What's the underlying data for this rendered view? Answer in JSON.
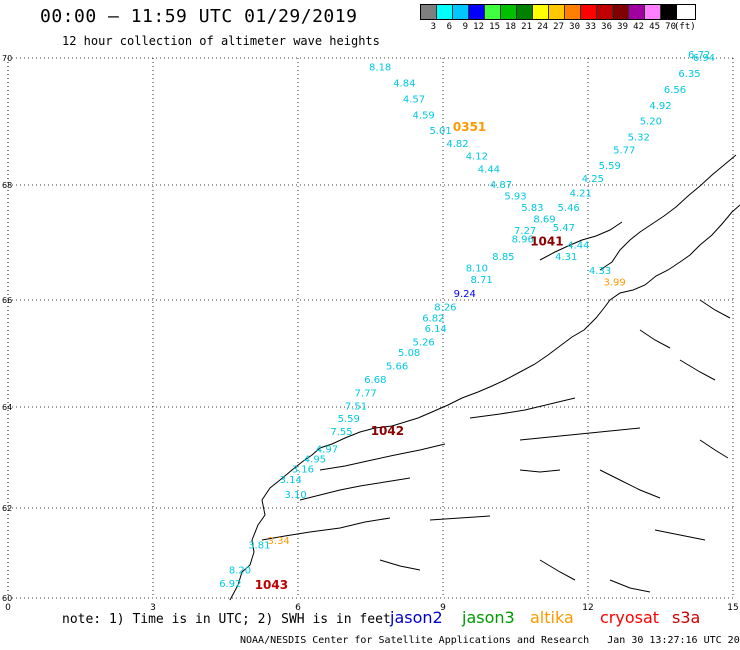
{
  "header": {
    "title": "00:00 – 11:59 UTC 01/29/2019",
    "subtitle": "12 hour collection of altimeter wave heights"
  },
  "scale": {
    "unit": "(ft)",
    "labels": [
      "3",
      "6",
      "9",
      "12",
      "15",
      "18",
      "21",
      "24",
      "27",
      "30",
      "33",
      "36",
      "39",
      "42",
      "45",
      "70"
    ],
    "colors": [
      "#7f7f7f",
      "#00ffff",
      "#00c8ff",
      "#0000ff",
      "#40ff40",
      "#00c000",
      "#008000",
      "#ffff00",
      "#ffc800",
      "#ff8000",
      "#ff0000",
      "#c00000",
      "#800000",
      "#a000a0",
      "#ff80ff",
      "#000000"
    ]
  },
  "axes": {
    "x_ticks": [
      "0",
      "3",
      "6",
      "9",
      "12",
      "15"
    ],
    "y_ticks": [
      "70",
      "68",
      "66",
      "64",
      "62",
      "60"
    ]
  },
  "passes": [
    {
      "id": "0351",
      "color": "#ff9900"
    },
    {
      "id": "1041",
      "color": "#8b0000"
    },
    {
      "id": "1042",
      "color": "#8b0000"
    },
    {
      "id": "1043",
      "color": "#c00000"
    }
  ],
  "chart_data": {
    "type": "scatter",
    "units": "ft",
    "xlim": [
      0,
      15
    ],
    "ylim": [
      60,
      70
    ],
    "points": [
      {
        "lon": 7.7,
        "lat": 69.8,
        "value": "8.18",
        "color": "#00c8e0"
      },
      {
        "lon": 8.2,
        "lat": 69.55,
        "value": "4.84",
        "color": "#00c8e0"
      },
      {
        "lon": 8.4,
        "lat": 69.3,
        "value": "4.57",
        "color": "#00c8e0"
      },
      {
        "lon": 8.6,
        "lat": 69.05,
        "value": "4.59",
        "color": "#00c8e0"
      },
      {
        "lon": 8.95,
        "lat": 68.8,
        "value": "5.01",
        "color": "#00c8e0"
      },
      {
        "lon": 9.3,
        "lat": 68.6,
        "value": "4.82",
        "color": "#00c8e0"
      },
      {
        "lon": 9.7,
        "lat": 68.4,
        "value": "4.12",
        "color": "#00c8e0"
      },
      {
        "lon": 9.95,
        "lat": 68.2,
        "value": "4.44",
        "color": "#00c8e0"
      },
      {
        "lon": 10.2,
        "lat": 67.95,
        "value": "4.87",
        "color": "#00c8e0"
      },
      {
        "lon": 10.5,
        "lat": 67.75,
        "value": "5.93",
        "color": "#00c8e0"
      },
      {
        "lon": 10.85,
        "lat": 67.55,
        "value": "5.83",
        "color": "#00c8e0"
      },
      {
        "lon": 11.1,
        "lat": 67.35,
        "value": "8.69",
        "color": "#00c8e0"
      },
      {
        "lon": 10.7,
        "lat": 67.15,
        "value": "7.27",
        "color": "#00c8e0"
      },
      {
        "lon": 10.65,
        "lat": 67.0,
        "value": "8.96",
        "color": "#00c8e0"
      },
      {
        "lon": 10.25,
        "lat": 66.7,
        "value": "8.85",
        "color": "#00c8e0"
      },
      {
        "lon": 9.7,
        "lat": 66.5,
        "value": "8.10",
        "color": "#00c8e0"
      },
      {
        "lon": 9.8,
        "lat": 66.3,
        "value": "8.71",
        "color": "#00c8e0"
      },
      {
        "lon": 9.45,
        "lat": 66.05,
        "value": "9.24",
        "color": "#0000ff"
      },
      {
        "lon": 9.05,
        "lat": 65.8,
        "value": "8.26",
        "color": "#00c8e0"
      },
      {
        "lon": 8.8,
        "lat": 65.6,
        "value": "6.82",
        "color": "#00c8e0"
      },
      {
        "lon": 8.85,
        "lat": 65.4,
        "value": "6.14",
        "color": "#00c8e0"
      },
      {
        "lon": 8.6,
        "lat": 65.15,
        "value": "5.26",
        "color": "#00c8e0"
      },
      {
        "lon": 8.3,
        "lat": 64.95,
        "value": "5.08",
        "color": "#00c8e0"
      },
      {
        "lon": 8.05,
        "lat": 64.7,
        "value": "5.66",
        "color": "#00c8e0"
      },
      {
        "lon": 7.6,
        "lat": 64.45,
        "value": "6.68",
        "color": "#00c8e0"
      },
      {
        "lon": 7.4,
        "lat": 64.2,
        "value": "7.77",
        "color": "#00c8e0"
      },
      {
        "lon": 7.2,
        "lat": 63.95,
        "value": "7.51",
        "color": "#00c8e0"
      },
      {
        "lon": 7.05,
        "lat": 63.7,
        "value": "5.59",
        "color": "#00c8e0"
      },
      {
        "lon": 6.9,
        "lat": 63.45,
        "value": "7.55",
        "color": "#00c8e0"
      },
      {
        "lon": 6.6,
        "lat": 63.1,
        "value": "4.97",
        "color": "#00c8e0"
      },
      {
        "lon": 6.35,
        "lat": 62.9,
        "value": "4.95",
        "color": "#00c8e0"
      },
      {
        "lon": 6.1,
        "lat": 62.7,
        "value": "3.16",
        "color": "#00c8e0"
      },
      {
        "lon": 5.85,
        "lat": 62.5,
        "value": "3.14",
        "color": "#00c8e0"
      },
      {
        "lon": 5.95,
        "lat": 62.2,
        "value": "3.10",
        "color": "#00c8e0"
      },
      {
        "lon": 14.3,
        "lat": 70.0,
        "value": "6.72",
        "color": "#00c8e0"
      },
      {
        "lon": 14.4,
        "lat": 69.95,
        "value": "6.94",
        "color": "#00c8e0"
      },
      {
        "lon": 14.1,
        "lat": 69.7,
        "value": "6.35",
        "color": "#00c8e0"
      },
      {
        "lon": 13.8,
        "lat": 69.45,
        "value": "6.56",
        "color": "#00c8e0"
      },
      {
        "lon": 13.5,
        "lat": 69.2,
        "value": "4.92",
        "color": "#00c8e0"
      },
      {
        "lon": 13.3,
        "lat": 68.95,
        "value": "5.20",
        "color": "#00c8e0"
      },
      {
        "lon": 13.05,
        "lat": 68.7,
        "value": "5.32",
        "color": "#00c8e0"
      },
      {
        "lon": 12.75,
        "lat": 68.5,
        "value": "5.77",
        "color": "#00c8e0"
      },
      {
        "lon": 12.45,
        "lat": 68.25,
        "value": "5.59",
        "color": "#00c8e0"
      },
      {
        "lon": 12.1,
        "lat": 68.05,
        "value": "4.25",
        "color": "#00c8e0"
      },
      {
        "lon": 11.85,
        "lat": 67.8,
        "value": "4.21",
        "color": "#00c8e0"
      },
      {
        "lon": 11.6,
        "lat": 67.55,
        "value": "5.46",
        "color": "#00c8e0"
      },
      {
        "lon": 11.5,
        "lat": 67.2,
        "value": "5.47",
        "color": "#00c8e0"
      },
      {
        "lon": 11.8,
        "lat": 66.9,
        "value": "4.44",
        "color": "#00c8e0"
      },
      {
        "lon": 11.55,
        "lat": 66.7,
        "value": "4.31",
        "color": "#00c8e0"
      },
      {
        "lon": 12.25,
        "lat": 66.45,
        "value": "4.33",
        "color": "#00c8e0"
      },
      {
        "lon": 12.55,
        "lat": 66.25,
        "value": "3.99",
        "color": "#ff9900"
      },
      {
        "lon": 5.2,
        "lat": 61.1,
        "value": "3.81",
        "color": "#00c8e0"
      },
      {
        "lon": 5.6,
        "lat": 61.2,
        "value": "3.34",
        "color": "#ff9900"
      },
      {
        "lon": 4.8,
        "lat": 60.55,
        "value": "8.20",
        "color": "#00c8e0"
      },
      {
        "lon": 4.6,
        "lat": 60.25,
        "value": "6.92",
        "color": "#00c8e0"
      }
    ]
  },
  "note": "note: 1) Time is in UTC; 2) SWH is in feet",
  "legend": [
    {
      "label": "jason2",
      "color": "#0000cc"
    },
    {
      "label": "jason3",
      "color": "#009900"
    },
    {
      "label": "altika",
      "color": "#ff9900"
    },
    {
      "label": "cryosat",
      "color": "#ff0000"
    },
    {
      "label": "s3a",
      "color": "#cc0000"
    }
  ],
  "footer": {
    "credit": "NOAA/NESDIS Center for Satellite Applications and Research",
    "timestamp": "Jan 30 13:27:16 UTC 2019"
  }
}
